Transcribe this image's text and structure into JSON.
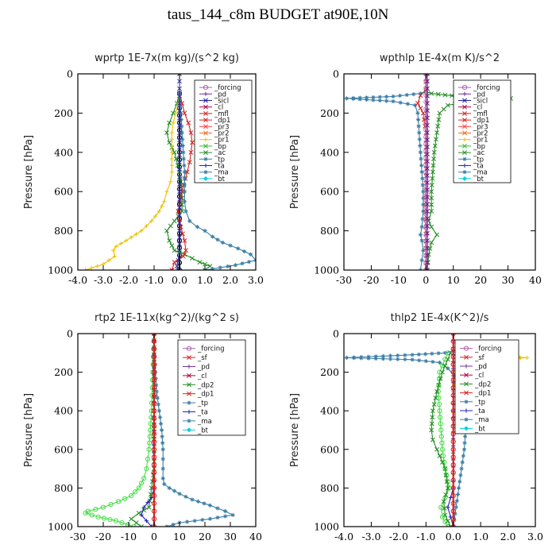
{
  "title": "taus_144_c8m  BUDGET at90E,10N",
  "chart_data": [
    {
      "type": "line",
      "title": "wprtp  1E-7x(m kg)/(s^2 kg)",
      "ylabel": "Pressure [hPa]",
      "xlim": [
        -4,
        3
      ],
      "xticks": [
        -4,
        -3,
        -2,
        -1,
        0,
        1,
        2,
        3
      ],
      "xtick_labels": [
        "-4.0",
        "-3.0",
        "-2.0",
        "-1.0",
        "0.0",
        "1.0",
        "2.0",
        "3.0"
      ],
      "ylim": [
        1000,
        0
      ],
      "yticks": [
        0,
        200,
        400,
        600,
        800,
        1000
      ],
      "ytick_labels": [
        "0",
        "200",
        "400",
        "600",
        "800",
        "1000"
      ],
      "legend_position": "top-right",
      "legend": [
        "_forcing",
        "_pd",
        "_sicl",
        "_cl",
        "_mfl",
        "_dp1",
        "_pr3",
        "_pr2",
        "_pr1",
        "_bp",
        "_ac",
        "_tp",
        "_ta",
        "_ma",
        "_bt"
      ],
      "series": [
        {
          "name": "_forcing",
          "color": "#000000",
          "marker": "circle",
          "x": [
            0,
            0,
            0,
            0,
            0,
            0,
            0
          ],
          "y": [
            100,
            250,
            400,
            550,
            700,
            850,
            1000
          ]
        },
        {
          "name": "_bp",
          "color": "#228b22",
          "marker": "x",
          "x": [
            0,
            -0.1,
            -0.25,
            -0.4,
            -0.5,
            -0.4,
            -0.2,
            0,
            0.1,
            0.1,
            -0.2,
            -0.5,
            -0.4,
            -0.2,
            0.2,
            0.5,
            0.8,
            1.2,
            1.0
          ],
          "y": [
            100,
            150,
            200,
            250,
            300,
            350,
            400,
            500,
            600,
            700,
            750,
            800,
            850,
            900,
            920,
            940,
            960,
            980,
            1000
          ]
        },
        {
          "name": "_ac",
          "color": "#d42020",
          "marker": "x",
          "x": [
            0,
            0.1,
            0.2,
            0.35,
            0.45,
            0.5,
            0.45,
            0.4,
            0.3,
            0.1,
            -0.05,
            0.05,
            0.2,
            0.25,
            0.15,
            -0.2,
            -0.3
          ],
          "y": [
            100,
            150,
            200,
            250,
            300,
            350,
            400,
            450,
            500,
            600,
            700,
            780,
            850,
            900,
            930,
            960,
            1000
          ]
        },
        {
          "name": "_pr1",
          "color": "#f0c000",
          "marker": "plus",
          "x": [
            0,
            -0.05,
            -0.15,
            -0.25,
            -0.3,
            -0.3,
            -0.3,
            -0.35,
            -0.5,
            -0.6,
            -0.8,
            -1.1,
            -1.5,
            -2.1,
            -2.5,
            -2.6,
            -2.55,
            -3.0,
            -3.7
          ],
          "y": [
            100,
            150,
            200,
            250,
            300,
            400,
            500,
            550,
            600,
            650,
            700,
            750,
            800,
            850,
            880,
            900,
            930,
            970,
            1000
          ]
        },
        {
          "name": "_tp",
          "color": "#3a7ea6",
          "marker": "star",
          "x": [
            0,
            0.05,
            0.1,
            0.15,
            0.2,
            0.2,
            0.2,
            0.25,
            0.4,
            0.7,
            1.0,
            1.3,
            1.7,
            2.3,
            2.8,
            3.0,
            2.2,
            1.0
          ],
          "y": [
            100,
            200,
            300,
            400,
            500,
            600,
            650,
            700,
            750,
            780,
            800,
            830,
            860,
            890,
            920,
            950,
            975,
            1000
          ]
        },
        {
          "name": "_sicl",
          "color": "#3030a0",
          "marker": "x",
          "x": [
            0,
            0,
            0,
            0,
            0,
            -0.05,
            -0.1,
            -0.05
          ],
          "y": [
            0,
            300,
            600,
            800,
            900,
            950,
            980,
            1000
          ]
        }
      ]
    },
    {
      "type": "line",
      "title": "wpthlp  1E-4x(m K)/s^2",
      "ylabel": "Pressure [hPa]",
      "xlim": [
        -30,
        40
      ],
      "xticks": [
        -30,
        -20,
        -10,
        0,
        10,
        20,
        30,
        40
      ],
      "xtick_labels": [
        "-30",
        "-20",
        "-10",
        "0",
        "10",
        "20",
        "30",
        "40"
      ],
      "ylim": [
        1000,
        0
      ],
      "yticks": [
        0,
        200,
        400,
        600,
        800,
        1000
      ],
      "ytick_labels": [
        "0",
        "200",
        "400",
        "600",
        "800",
        "1000"
      ],
      "legend_position": "top-right",
      "legend": [
        "_forcing",
        "_pd",
        "_sicl",
        "_cl",
        "_mfl",
        "_dp1",
        "_pr3",
        "_pr2",
        "_pr1",
        "_bp",
        "_ac",
        "_tp",
        "_ta",
        "_ma",
        "_bt"
      ],
      "series": [
        {
          "name": "_ma",
          "color": "#3a7ea6",
          "marker": "star",
          "x": [
            0,
            -2,
            -12,
            -29,
            -12,
            -4,
            -3,
            -2.5,
            -2,
            -1.5,
            -1,
            -1,
            -1.5,
            -2,
            -1.5,
            -1,
            -1.5,
            -2
          ],
          "y": [
            90,
            100,
            115,
            125,
            140,
            160,
            200,
            300,
            400,
            500,
            600,
            700,
            780,
            820,
            850,
            900,
            950,
            1000
          ]
        },
        {
          "name": "_bp",
          "color": "#228b22",
          "marker": "x",
          "x": [
            0,
            2,
            12,
            31,
            16,
            8,
            5,
            4,
            3,
            2.5,
            2,
            2,
            1,
            2,
            4,
            2,
            1,
            0.5
          ],
          "y": [
            90,
            100,
            115,
            125,
            140,
            160,
            200,
            300,
            400,
            500,
            600,
            700,
            750,
            780,
            820,
            860,
            920,
            1000
          ]
        },
        {
          "name": "_ac",
          "color": "#d42020",
          "marker": "x",
          "x": [
            0,
            0,
            -2,
            -3,
            -1,
            0,
            0
          ],
          "y": [
            0,
            80,
            110,
            150,
            200,
            300,
            1000
          ]
        },
        {
          "name": "_forcing",
          "color": "#c080c0",
          "marker": "circle",
          "x": [
            0,
            0,
            0,
            0,
            0
          ],
          "y": [
            0,
            250,
            500,
            750,
            1000
          ]
        },
        {
          "name": "_sicl",
          "color": "#6a2080",
          "marker": "x",
          "x": [
            0.5,
            0.5,
            0.5,
            0.5
          ],
          "y": [
            0,
            300,
            700,
            1000
          ]
        }
      ]
    },
    {
      "type": "line",
      "title": "rtp2  1E-11x(kg^2)/(kg^2 s)",
      "ylabel": "Pressure [hPa]",
      "xlim": [
        -30,
        40
      ],
      "xticks": [
        -30,
        -20,
        -10,
        0,
        10,
        20,
        30,
        40
      ],
      "xtick_labels": [
        "-30",
        "-20",
        "-10",
        "0",
        "10",
        "20",
        "30",
        "40"
      ],
      "ylim": [
        1000,
        0
      ],
      "yticks": [
        0,
        200,
        400,
        600,
        800,
        1000
      ],
      "ytick_labels": [
        "0",
        "200",
        "400",
        "600",
        "800",
        "1000"
      ],
      "legend_position": "top-right",
      "legend": [
        "_forcing",
        "_sf",
        "_pd",
        "_cl",
        "_dp2",
        "_dp1",
        "_tp",
        "_ta",
        "_ma",
        "_bt"
      ],
      "series": [
        {
          "name": "_dp1",
          "color": "#44dd44",
          "marker": "circle",
          "x": [
            0,
            -0.5,
            -1,
            -1.5,
            -2,
            -2.5,
            -3,
            -4,
            -6,
            -9,
            -14,
            -20,
            -26,
            -27,
            -22,
            -15,
            -8
          ],
          "y": [
            0,
            200,
            400,
            500,
            600,
            650,
            700,
            750,
            800,
            840,
            870,
            900,
            920,
            930,
            950,
            970,
            1000
          ]
        },
        {
          "name": "_dp2",
          "color": "#228b22",
          "marker": "x",
          "x": [
            0,
            0,
            0,
            -1,
            -2,
            -6,
            -9,
            -5
          ],
          "y": [
            0,
            400,
            700,
            800,
            900,
            930,
            960,
            1000
          ]
        },
        {
          "name": "_tp",
          "color": "#3a7ea6",
          "marker": "star",
          "x": [
            0,
            0.5,
            1,
            2,
            3,
            3.5,
            3.5,
            3.5,
            3.5,
            4,
            6,
            10,
            15,
            22,
            28,
            31,
            22,
            10,
            5
          ],
          "y": [
            0,
            200,
            300,
            400,
            500,
            600,
            650,
            700,
            750,
            780,
            800,
            830,
            860,
            890,
            920,
            940,
            960,
            980,
            1000
          ]
        },
        {
          "name": "_ta",
          "color": "#2020c0",
          "marker": "plus",
          "x": [
            0,
            0,
            0,
            -1,
            -4,
            -5,
            -3,
            -1
          ],
          "y": [
            0,
            500,
            800,
            850,
            900,
            940,
            970,
            1000
          ]
        },
        {
          "name": "_forcing",
          "color": "#d42020",
          "marker": "circle",
          "x": [
            0,
            0,
            0,
            0,
            0,
            0
          ],
          "y": [
            0,
            200,
            400,
            600,
            800,
            1000
          ]
        }
      ]
    },
    {
      "type": "line",
      "title": "thlp2  1E-4x(K^2)/s",
      "ylabel": "Pressure [hPa]",
      "xlim": [
        -4,
        3
      ],
      "xticks": [
        -4,
        -3,
        -2,
        -1,
        0,
        1,
        2,
        3
      ],
      "xtick_labels": [
        "-4.0",
        "-3.0",
        "-2.0",
        "-1.0",
        "0.0",
        "1.0",
        "2.0",
        "3.0"
      ],
      "ylim": [
        1000,
        0
      ],
      "yticks": [
        0,
        200,
        400,
        600,
        800,
        1000
      ],
      "ytick_labels": [
        "0",
        "200",
        "400",
        "600",
        "800",
        "1000"
      ],
      "legend_position": "top-right",
      "legend": [
        "_forcing",
        "_sf",
        "_pd",
        "_cl",
        "_dp2",
        "_dp1",
        "_tp",
        "_ta",
        "_ma",
        "_bt"
      ],
      "series": [
        {
          "name": "_tp",
          "color": "#3a7ea6",
          "marker": "star",
          "x": [
            0,
            -0.3,
            -1.5,
            -3.9,
            -1.5,
            -0.5,
            -0.2,
            0.05,
            0.2,
            0.35,
            0.45,
            0.4,
            0.3,
            0.2,
            0.1,
            0.0
          ],
          "y": [
            90,
            100,
            110,
            125,
            135,
            150,
            180,
            220,
            300,
            400,
            500,
            600,
            700,
            800,
            900,
            1000
          ]
        },
        {
          "name": "_pd",
          "color": "#f0c000",
          "marker": "plus",
          "x": [
            0,
            0.5,
            1.6,
            2.7,
            1.5,
            0.5,
            0.1,
            0
          ],
          "y": [
            90,
            100,
            115,
            125,
            135,
            150,
            200,
            300
          ]
        },
        {
          "name": "_dp1",
          "color": "#44dd44",
          "marker": "circle",
          "x": [
            -0.2,
            -0.5,
            -0.55,
            -0.5,
            -0.45,
            -0.4,
            -0.3,
            -0.15,
            -0.3,
            -0.45,
            -0.4,
            -0.2
          ],
          "y": [
            100,
            200,
            300,
            400,
            500,
            600,
            700,
            800,
            850,
            900,
            950,
            1000
          ]
        },
        {
          "name": "_dp2",
          "color": "#228b22",
          "marker": "x",
          "x": [
            -0.1,
            -0.4,
            -0.6,
            -0.75,
            -0.8,
            -0.75,
            -0.6,
            -0.3,
            -0.2,
            -0.35,
            -0.3,
            -0.1
          ],
          "y": [
            100,
            200,
            300,
            400,
            500,
            550,
            600,
            700,
            800,
            870,
            940,
            1000
          ]
        },
        {
          "name": "_ta",
          "color": "#2020c0",
          "marker": "plus",
          "x": [
            0,
            0,
            0,
            -0.1,
            -0.2,
            -0.1,
            0
          ],
          "y": [
            0,
            400,
            800,
            850,
            900,
            950,
            1000
          ]
        },
        {
          "name": "_forcing",
          "color": "#d42020",
          "marker": "circle",
          "x": [
            0,
            0,
            0,
            0,
            0,
            0
          ],
          "y": [
            0,
            200,
            400,
            600,
            800,
            1000
          ]
        }
      ]
    }
  ],
  "legend_colors": {
    "_forcing": "#b060b0",
    "_pd": "#7030a0",
    "_sicl": "#2020a0",
    "_sf": "#d42020",
    "_cl": "#b00040",
    "_mfl": "#d42020",
    "_dp1": "#d42020",
    "_dp2": "#228b22",
    "_pr3": "#ff4040",
    "_pr2": "#f07020",
    "_pr1": "#f0c000",
    "_bp": "#3cb43c",
    "_ac": "#2a8a2a",
    "_tp": "#3a7ea6",
    "_ta": "#2020c0",
    "_ma": "#3a7ea6",
    "_bt": "#00d0e0"
  }
}
